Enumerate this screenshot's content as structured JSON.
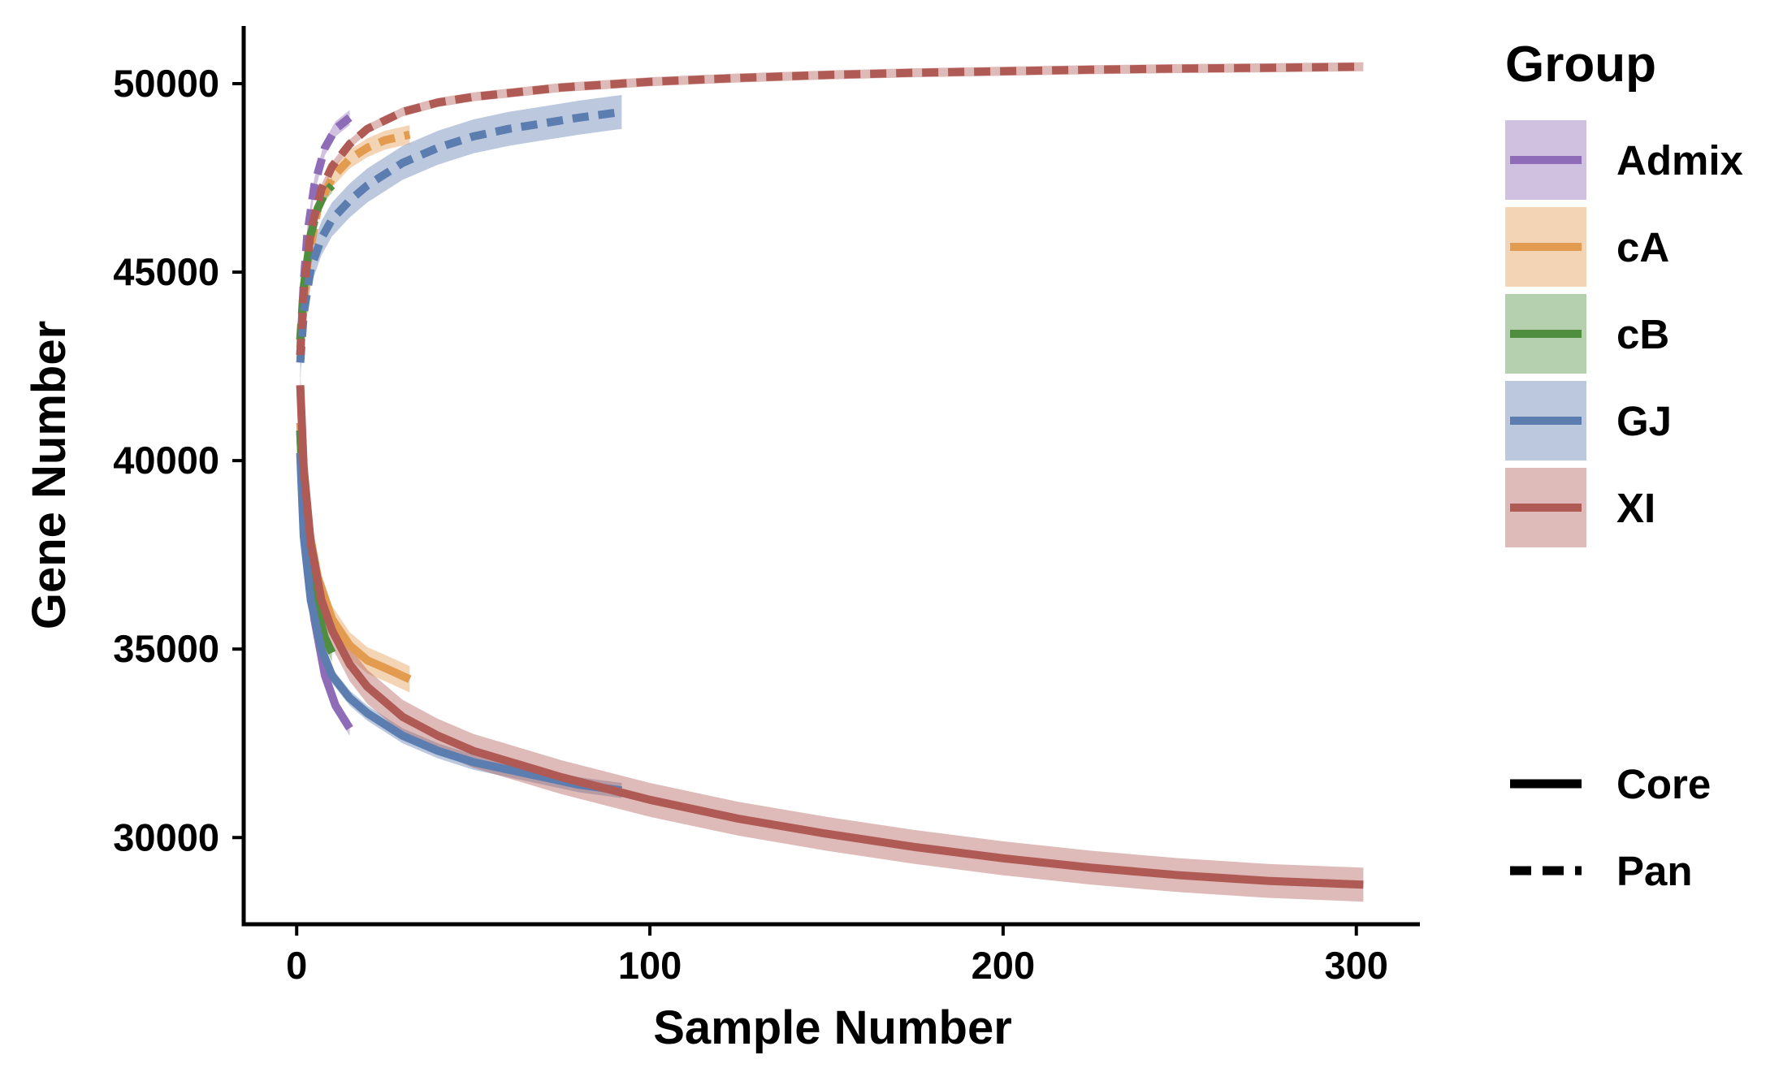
{
  "chart_data": {
    "type": "line",
    "xlabel": "Sample Number",
    "ylabel": "Gene Number",
    "xlim": [
      -15,
      318
    ],
    "ylim": [
      27700,
      51530
    ],
    "x_ticks": [
      0,
      100,
      200,
      300
    ],
    "y_ticks": [
      30000,
      35000,
      40000,
      45000,
      50000
    ],
    "x_tick_labels": [
      "0",
      "100",
      "200",
      "300"
    ],
    "y_tick_labels": [
      "30000",
      "35000",
      "40000",
      "45000",
      "50000"
    ],
    "grid": false,
    "legend_position": "right",
    "legend": {
      "color_title": "Group",
      "linetype_entries": [
        {
          "label": "Core",
          "style": "solid"
        },
        {
          "label": "Pan",
          "style": "dashed"
        }
      ]
    },
    "series": [
      {
        "name": "Admix",
        "color": "#8E6CB8",
        "core": {
          "x": [
            1,
            2,
            3,
            5,
            8,
            11,
            15
          ],
          "y": [
            40800,
            38600,
            37300,
            35800,
            34300,
            33500,
            32900
          ],
          "band": 200
        },
        "pan": {
          "x": [
            1,
            2,
            3,
            5,
            8,
            11,
            15
          ],
          "y": [
            42800,
            44700,
            46000,
            47300,
            48300,
            48800,
            49100
          ],
          "band": 200
        }
      },
      {
        "name": "cA",
        "color": "#E39B50",
        "core": {
          "x": [
            1,
            3,
            6,
            10,
            15,
            20,
            25,
            32
          ],
          "y": [
            41000,
            38400,
            36900,
            35800,
            35100,
            34700,
            34500,
            34200
          ],
          "band": 350
        },
        "pan": {
          "x": [
            1,
            3,
            6,
            10,
            15,
            20,
            25,
            32
          ],
          "y": [
            43000,
            45200,
            46700,
            47500,
            48000,
            48300,
            48500,
            48650
          ],
          "band": 250
        }
      },
      {
        "name": "cB",
        "color": "#4F8E3F",
        "core": {
          "x": [
            1,
            2,
            4,
            6,
            8,
            10
          ],
          "y": [
            40800,
            38800,
            37000,
            36000,
            35300,
            34900
          ],
          "band": 250
        },
        "pan": {
          "x": [
            1,
            2,
            4,
            6,
            8,
            10
          ],
          "y": [
            43200,
            44600,
            46000,
            46700,
            47100,
            47300
          ],
          "band": 200
        }
      },
      {
        "name": "GJ",
        "color": "#5C7DAF",
        "core": {
          "x": [
            1,
            2,
            4,
            7,
            10,
            15,
            20,
            30,
            40,
            50,
            60,
            70,
            80,
            92
          ],
          "y": [
            40200,
            38000,
            36300,
            35000,
            34300,
            33700,
            33300,
            32700,
            32300,
            32000,
            31800,
            31600,
            31400,
            31250
          ],
          "band": 200
        },
        "pan": {
          "x": [
            1,
            2,
            4,
            7,
            10,
            15,
            20,
            30,
            40,
            50,
            60,
            70,
            80,
            92
          ],
          "y": [
            42600,
            43900,
            45100,
            45900,
            46400,
            46900,
            47300,
            47900,
            48300,
            48600,
            48800,
            48950,
            49100,
            49250
          ],
          "band": 450
        }
      },
      {
        "name": "XI",
        "color": "#B05A55",
        "core": {
          "x": [
            1,
            2,
            4,
            7,
            10,
            15,
            20,
            30,
            40,
            50,
            75,
            100,
            125,
            150,
            175,
            200,
            225,
            250,
            275,
            302
          ],
          "y": [
            42000,
            39800,
            37800,
            36300,
            35500,
            34600,
            34000,
            33200,
            32700,
            32300,
            31600,
            31000,
            30500,
            30100,
            29750,
            29450,
            29200,
            29000,
            28850,
            28750
          ],
          "band": 450
        },
        "pan": {
          "x": [
            1,
            2,
            4,
            7,
            10,
            15,
            20,
            30,
            40,
            50,
            75,
            100,
            125,
            150,
            175,
            200,
            225,
            250,
            275,
            302
          ],
          "y": [
            42800,
            44500,
            46100,
            47200,
            47800,
            48400,
            48800,
            49250,
            49500,
            49650,
            49900,
            50050,
            50150,
            50230,
            50290,
            50330,
            50370,
            50400,
            50420,
            50450
          ],
          "band": 120
        }
      }
    ]
  }
}
